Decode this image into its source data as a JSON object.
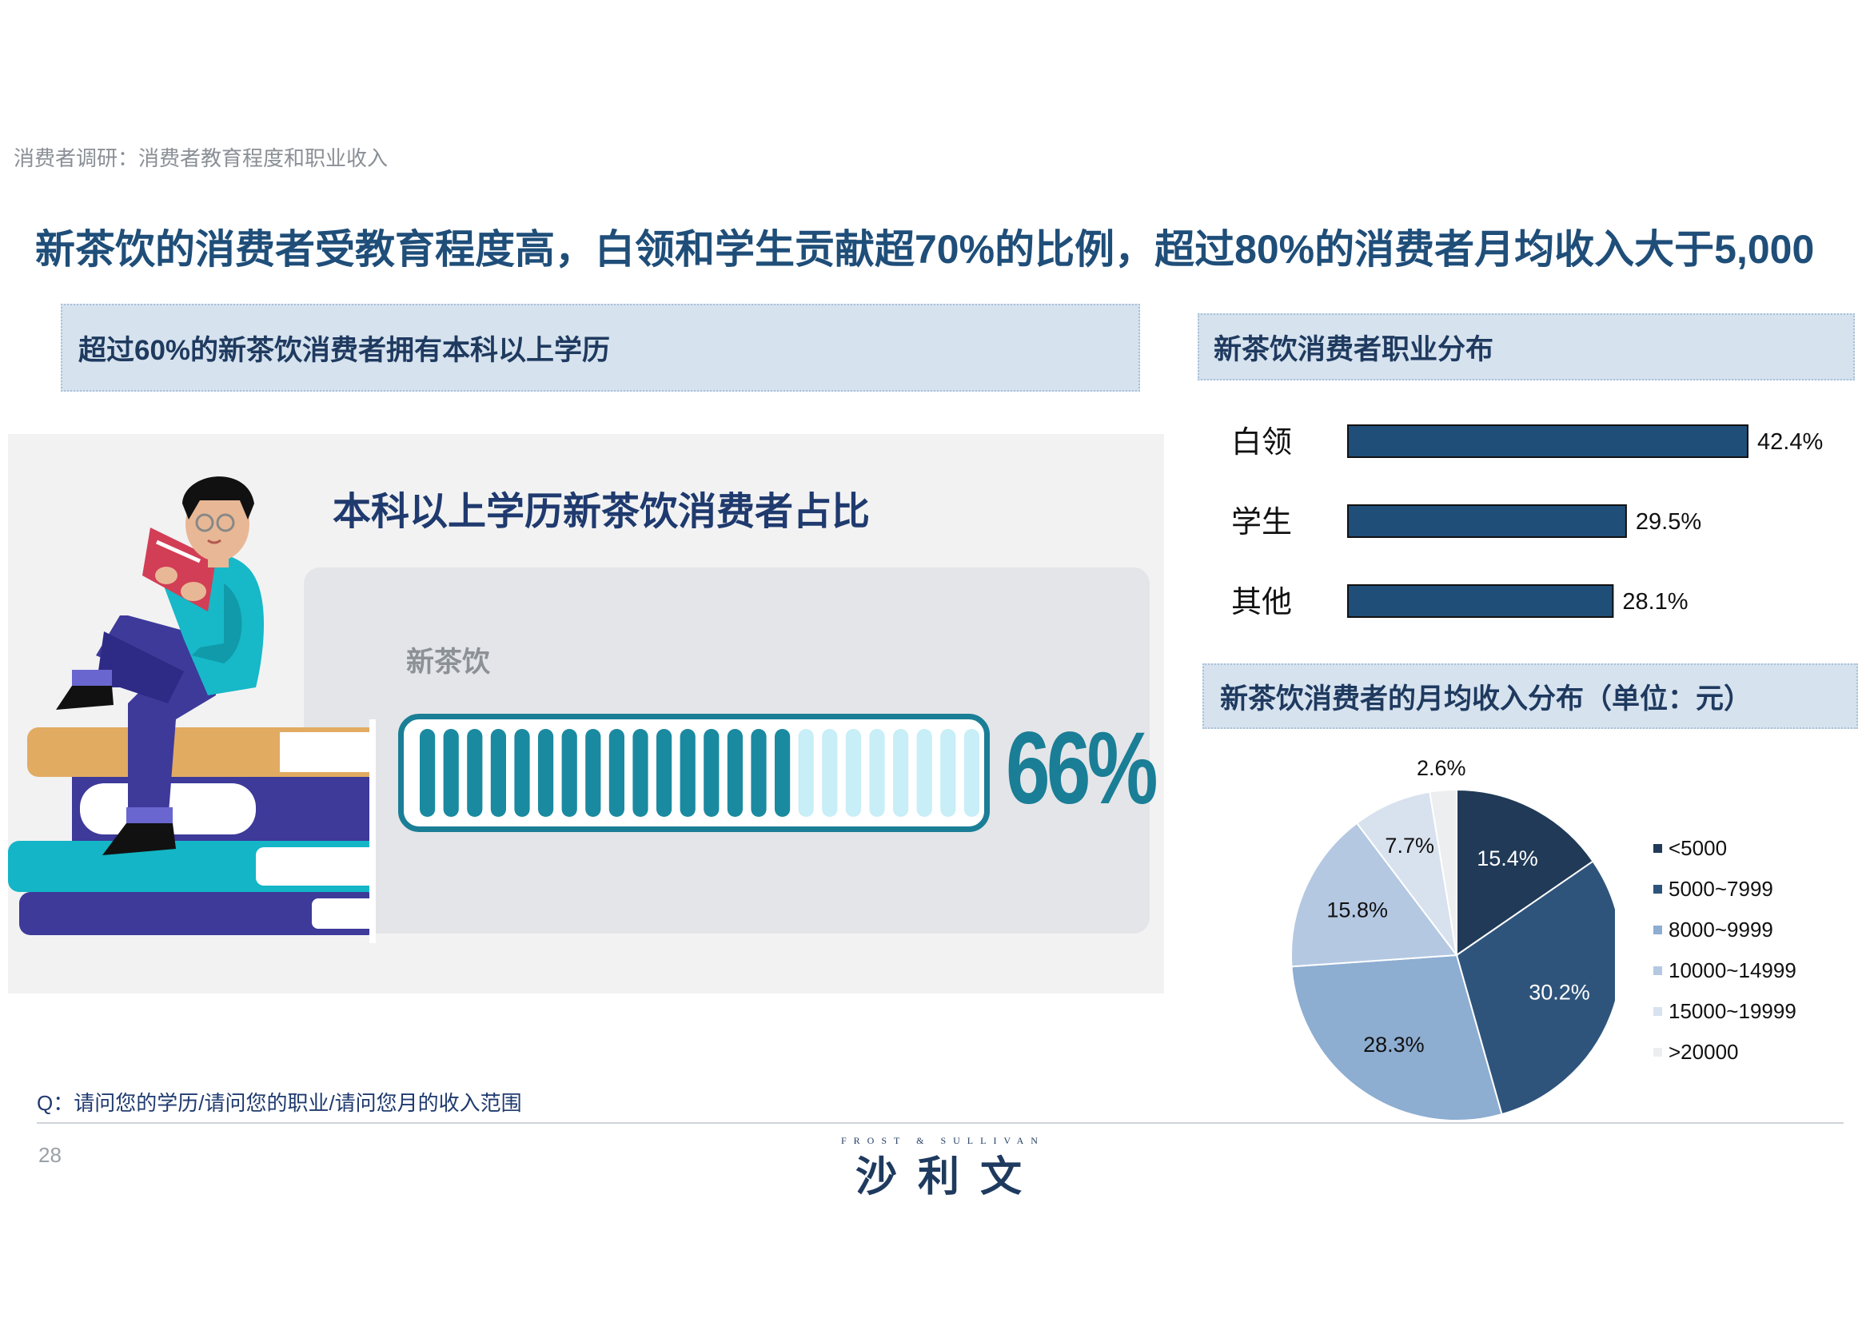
{
  "breadcrumb": "消费者调研：消费者教育程度和职业收入",
  "headline": "新茶饮的消费者受教育程度高，白领和学生贡献超70%的比例，超过80%的消费者月均收入大于5,000",
  "education": {
    "panel_label": "超过60%的新茶饮消费者拥有本科以上学历",
    "title": "本科以上学历新茶饮消费者占比",
    "category": "新茶饮",
    "percent_text": "66%",
    "progress_fraction": 0.66,
    "colors": {
      "filled": "#1a8aa0",
      "empty": "#c8eef7",
      "frame": "#1a7e96"
    }
  },
  "occupation": {
    "panel_label": "新茶饮消费者职业分布"
  },
  "income": {
    "panel_label": "新茶饮消费者的月均收入分布（单位：元）"
  },
  "footer": {
    "question": "Q：请问您的学历/请问您的职业/请问您月的收入范围",
    "page_number": "28",
    "logo_sub": "FROST & SULLIVAN",
    "logo_main": "沙利文"
  },
  "chart_data": [
    {
      "type": "bar",
      "orientation": "horizontal",
      "categories": [
        "白领",
        "学生",
        "其他"
      ],
      "values": [
        42.4,
        29.5,
        28.1
      ],
      "value_labels": [
        "42.4%",
        "29.5%",
        "28.1%"
      ],
      "xlim": [
        0,
        45
      ],
      "color": "#1f4e79"
    },
    {
      "type": "pie",
      "labels": [
        "<5000",
        "5000~7999",
        "8000~9999",
        "10000~14999",
        "15000~19999",
        ">20000"
      ],
      "values": [
        15.4,
        30.2,
        28.3,
        15.8,
        7.7,
        2.6
      ],
      "value_labels": [
        "15.4%",
        "30.2%",
        "28.3%",
        "15.8%",
        "7.7%",
        "2.6%"
      ],
      "colors": [
        "#203a57",
        "#2f547c",
        "#8dadd1",
        "#b4c8e2",
        "#d8e2ee",
        "#eceef0"
      ],
      "legend_position": "right"
    }
  ]
}
